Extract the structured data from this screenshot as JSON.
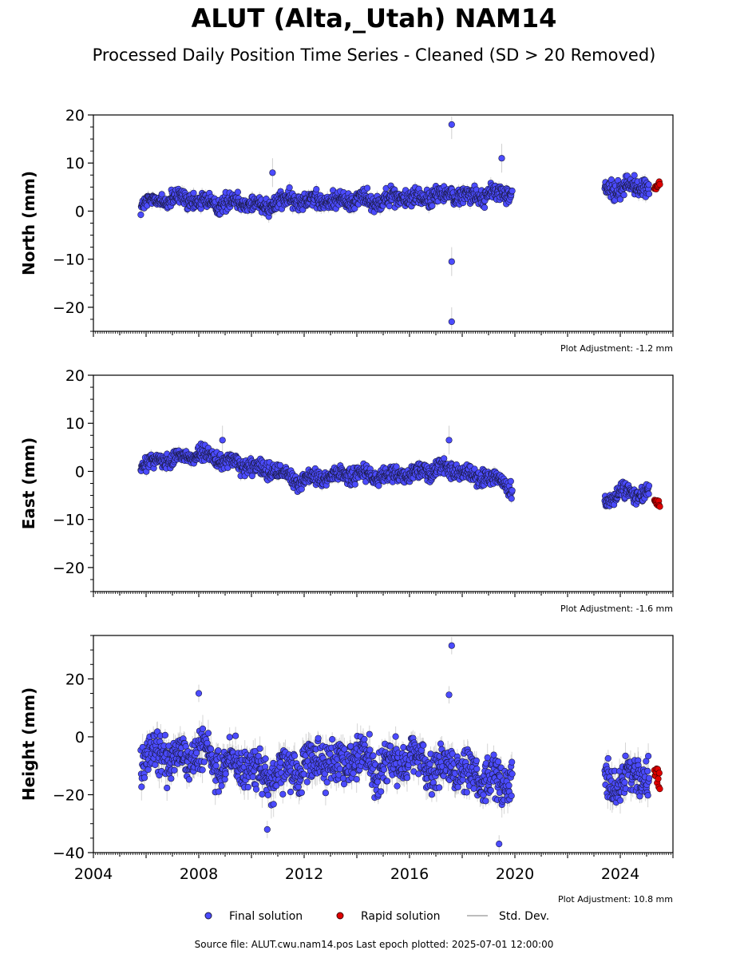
{
  "header": {
    "title": "ALUT (Alta,_Utah) NAM14",
    "subtitle": "Processed Daily Position Time Series - Cleaned (SD > 20 Removed)"
  },
  "footer": {
    "source": "Source file: ALUT.cwu.nam14.pos  Last epoch plotted: 2025-07-01 12:00:00"
  },
  "legend": {
    "final": "Final solution",
    "rapid": "Rapid solution",
    "std": "Std. Dev."
  },
  "colors": {
    "final": "#4b4bff",
    "rapid": "#e00000",
    "std": "#bdbdbd",
    "edge": "#1a1a40"
  },
  "chart_data": [
    {
      "type": "scatter",
      "ylabel": "North (mm)",
      "ylim": [
        -25,
        20
      ],
      "yticks": [
        -20,
        -10,
        0,
        10,
        20
      ],
      "xlim": [
        2004,
        2026
      ],
      "adjustment": "Plot Adjustment: -1.2 mm",
      "series": [
        {
          "name": "Final solution",
          "gaps": [
            [
              2020.0,
              2023.4
            ]
          ],
          "spread": 1.8,
          "points": [
            [
              2005.8,
              1.5
            ],
            [
              2006.5,
              2.2
            ],
            [
              2007.2,
              2.5
            ],
            [
              2008.0,
              2.0
            ],
            [
              2008.8,
              1.5
            ],
            [
              2009.5,
              2.2
            ],
            [
              2010.3,
              1.0
            ],
            [
              2011.0,
              2.0
            ],
            [
              2011.8,
              2.5
            ],
            [
              2012.5,
              2.2
            ],
            [
              2013.2,
              2.0
            ],
            [
              2014.0,
              2.6
            ],
            [
              2014.8,
              2.2
            ],
            [
              2015.6,
              3.0
            ],
            [
              2016.3,
              2.5
            ],
            [
              2017.0,
              3.2
            ],
            [
              2017.6,
              3.5
            ],
            [
              2018.3,
              3.2
            ],
            [
              2019.0,
              3.4
            ],
            [
              2019.9,
              3.8
            ],
            [
              2023.4,
              5.0
            ],
            [
              2024.0,
              4.5
            ],
            [
              2024.5,
              5.5
            ],
            [
              2025.1,
              4.8
            ]
          ]
        },
        {
          "name": "Rapid solution",
          "points": [
            [
              2025.3,
              5.0
            ],
            [
              2025.5,
              5.5
            ]
          ]
        }
      ],
      "outliers": [
        [
          2017.6,
          18
        ],
        [
          2017.6,
          -10.5
        ],
        [
          2017.6,
          -23
        ],
        [
          2019.5,
          11
        ],
        [
          2010.8,
          8
        ]
      ]
    },
    {
      "type": "scatter",
      "ylabel": "East (mm)",
      "ylim": [
        -25,
        20
      ],
      "yticks": [
        -20,
        -10,
        0,
        10,
        20
      ],
      "xlim": [
        2004,
        2026
      ],
      "adjustment": "Plot Adjustment: -1.6 mm",
      "series": [
        {
          "name": "Final solution",
          "gaps": [
            [
              2020.0,
              2023.4
            ]
          ],
          "spread": 1.6,
          "points": [
            [
              2005.8,
              1.0
            ],
            [
              2006.5,
              2.5
            ],
            [
              2007.2,
              3.0
            ],
            [
              2008.0,
              3.5
            ],
            [
              2008.8,
              2.5
            ],
            [
              2009.5,
              1.5
            ],
            [
              2010.3,
              0.5
            ],
            [
              2011.0,
              0.0
            ],
            [
              2011.8,
              -2.0
            ],
            [
              2012.5,
              -1.5
            ],
            [
              2013.2,
              -1.0
            ],
            [
              2014.0,
              -0.5
            ],
            [
              2014.8,
              -1.5
            ],
            [
              2015.6,
              -0.5
            ],
            [
              2016.3,
              -0.5
            ],
            [
              2017.0,
              0.5
            ],
            [
              2017.6,
              0.5
            ],
            [
              2018.3,
              -1.0
            ],
            [
              2019.0,
              -1.0
            ],
            [
              2019.9,
              -3.5
            ],
            [
              2023.4,
              -7.0
            ],
            [
              2024.0,
              -4.0
            ],
            [
              2024.5,
              -5.0
            ],
            [
              2025.1,
              -4.0
            ]
          ]
        },
        {
          "name": "Rapid solution",
          "points": [
            [
              2025.3,
              -6.0
            ],
            [
              2025.5,
              -7.0
            ]
          ]
        }
      ],
      "outliers": [
        [
          2017.5,
          6.5
        ],
        [
          2008.9,
          6.5
        ]
      ]
    },
    {
      "type": "scatter",
      "ylabel": "Height (mm)",
      "ylim": [
        -40,
        35
      ],
      "yticks": [
        -40,
        -20,
        0,
        20
      ],
      "xlim": [
        2004,
        2026
      ],
      "xticks": [
        2004,
        2008,
        2012,
        2016,
        2020,
        2024
      ],
      "adjustment": "Plot Adjustment: 10.8 mm",
      "series": [
        {
          "name": "Final solution",
          "gaps": [
            [
              2020.0,
              2023.4
            ]
          ],
          "spread": 7.0,
          "points": [
            [
              2005.8,
              -7
            ],
            [
              2006.5,
              -5
            ],
            [
              2007.2,
              -8
            ],
            [
              2008.0,
              -6
            ],
            [
              2008.8,
              -10
            ],
            [
              2009.5,
              -9
            ],
            [
              2010.3,
              -12
            ],
            [
              2011.0,
              -14
            ],
            [
              2011.8,
              -10
            ],
            [
              2012.5,
              -8
            ],
            [
              2013.2,
              -9
            ],
            [
              2014.0,
              -7
            ],
            [
              2014.8,
              -11
            ],
            [
              2015.6,
              -9
            ],
            [
              2016.3,
              -8
            ],
            [
              2017.0,
              -12
            ],
            [
              2017.6,
              -10
            ],
            [
              2018.3,
              -13
            ],
            [
              2019.0,
              -15
            ],
            [
              2019.9,
              -14
            ],
            [
              2023.4,
              -13
            ],
            [
              2024.0,
              -18
            ],
            [
              2024.5,
              -12
            ],
            [
              2025.1,
              -14
            ]
          ]
        },
        {
          "name": "Rapid solution",
          "points": [
            [
              2025.3,
              -13
            ],
            [
              2025.5,
              -15
            ]
          ]
        }
      ],
      "outliers": [
        [
          2017.6,
          31.5
        ],
        [
          2017.5,
          14.5
        ],
        [
          2008.0,
          15
        ],
        [
          2019.4,
          -37
        ],
        [
          2010.6,
          -32
        ]
      ]
    }
  ]
}
